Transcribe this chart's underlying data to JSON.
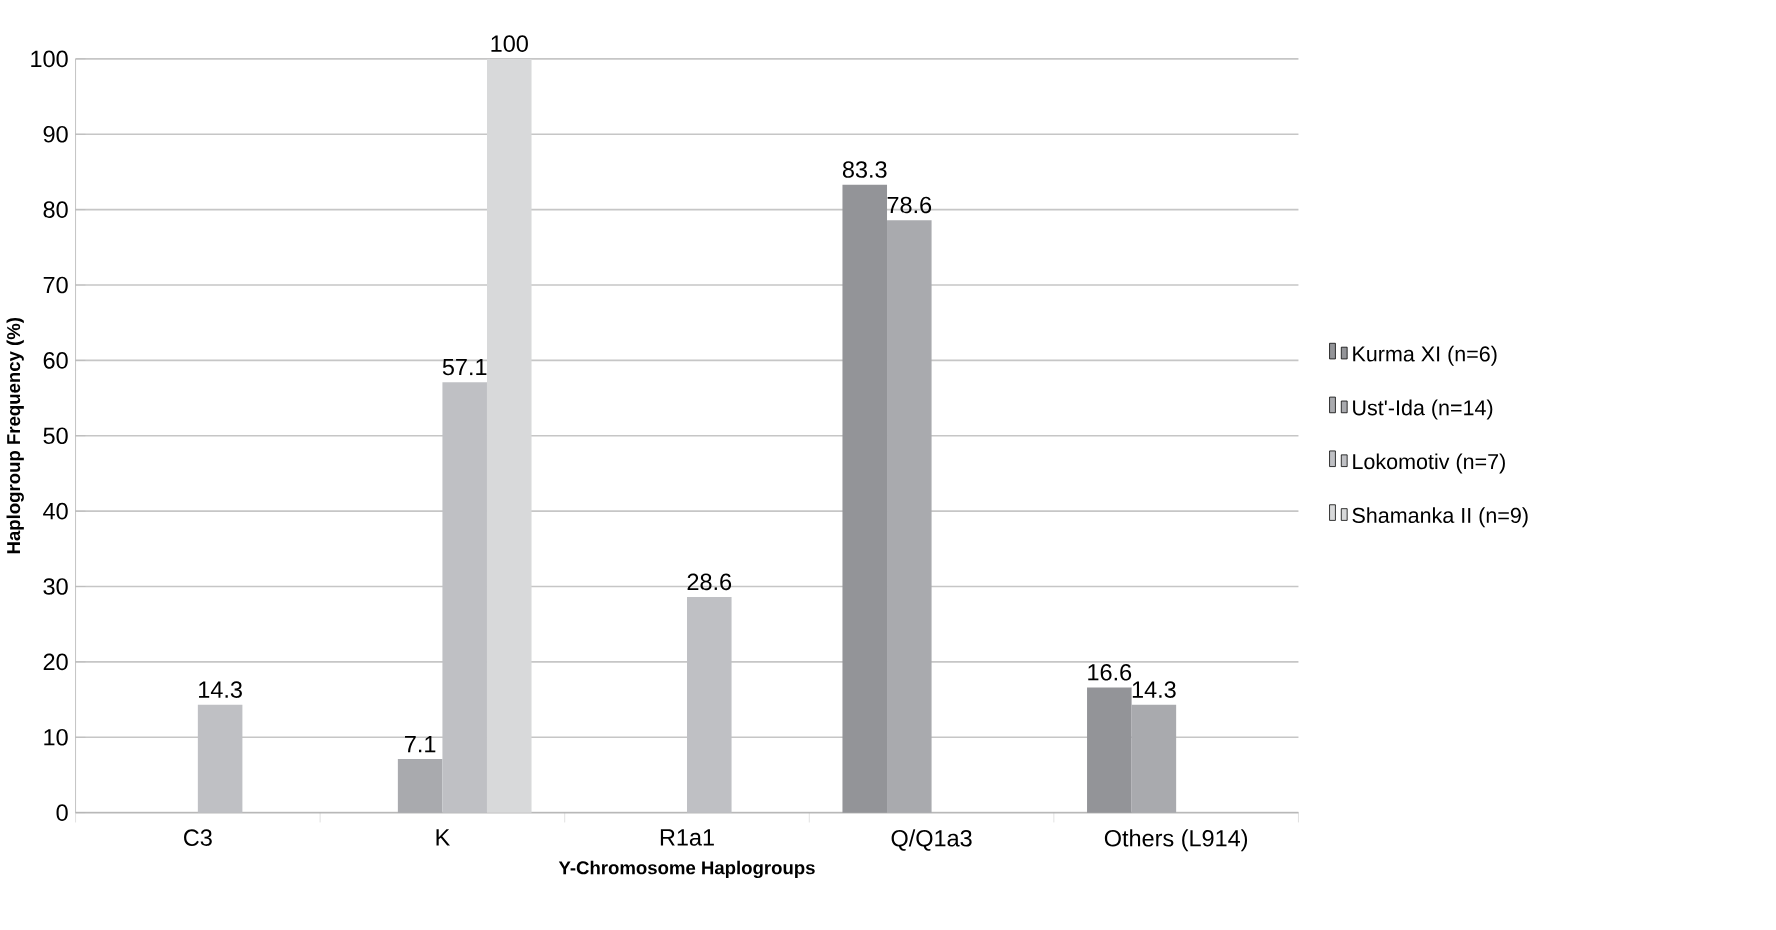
{
  "chart_data": {
    "type": "bar",
    "xlabel": "Y-Chromosome Haplogroups",
    "ylabel": "Haplogroup Frequency (%)",
    "categories": [
      "C3",
      "K",
      "R1a1",
      "Q/Q1a3",
      "Others (L914)"
    ],
    "series": [
      {
        "name": "Kurma XI (n=6)",
        "color": "#939498",
        "values": [
          null,
          null,
          null,
          83.3,
          16.6
        ],
        "value_labels": [
          null,
          null,
          null,
          "83.3",
          "16.6"
        ]
      },
      {
        "name": "Ust'-Ida (n=14)",
        "color": "#a9aaae",
        "values": [
          null,
          7.1,
          null,
          78.6,
          14.3
        ],
        "value_labels": [
          null,
          "7.1",
          null,
          "78.6",
          "14.3"
        ]
      },
      {
        "name": "Lokomotiv (n=7)",
        "color": "#bfc0c4",
        "values": [
          14.3,
          57.1,
          28.6,
          null,
          null
        ],
        "value_labels": [
          "14.3",
          "57.1",
          "28.6",
          null,
          null
        ]
      },
      {
        "name": "Shamanka II (n=9)",
        "color": "#d8d9da",
        "values": [
          null,
          100,
          null,
          null,
          null
        ],
        "value_labels": [
          null,
          "100",
          null,
          null,
          null
        ]
      }
    ],
    "ylim": [
      0,
      100
    ],
    "yticks": [
      0,
      10,
      20,
      30,
      40,
      50,
      60,
      70,
      80,
      90,
      100
    ],
    "grid": "y",
    "legend": "right"
  }
}
